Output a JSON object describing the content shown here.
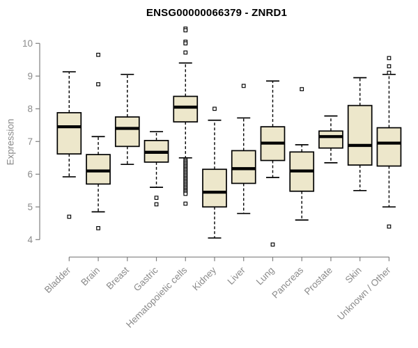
{
  "chart_data": {
    "type": "boxplot",
    "title": "ENSG00000066379 - ZNRD1",
    "ylabel": "Expression",
    "xlabel": "",
    "ylim": [
      3.8,
      10.6
    ],
    "yticks": [
      4,
      5,
      6,
      7,
      8,
      9,
      10
    ],
    "grid": false,
    "legend": "none",
    "categories": [
      "Bladder",
      "Brain",
      "Breast",
      "Gastric",
      "Hematopoietic cells",
      "Kidney",
      "Liver",
      "Lung",
      "Pancreas",
      "Prostate",
      "Skin",
      "Unknown / Other"
    ],
    "boxes": [
      {
        "label": "Bladder",
        "whisker_low": 5.92,
        "q1": 6.62,
        "median": 7.45,
        "q3": 7.88,
        "whisker_high": 9.13,
        "outliers": [
          4.7
        ]
      },
      {
        "label": "Brain",
        "whisker_low": 4.85,
        "q1": 5.7,
        "median": 6.1,
        "q3": 6.6,
        "whisker_high": 7.15,
        "outliers": [
          9.65,
          8.75,
          4.35
        ]
      },
      {
        "label": "Breast",
        "whisker_low": 6.3,
        "q1": 6.85,
        "median": 7.4,
        "q3": 7.75,
        "whisker_high": 9.05,
        "outliers": []
      },
      {
        "label": "Gastric",
        "whisker_low": 5.6,
        "q1": 6.37,
        "median": 6.67,
        "q3": 7.03,
        "whisker_high": 7.3,
        "outliers": [
          5.28,
          5.08
        ]
      },
      {
        "label": "Hematopoietic cells",
        "whisker_low": 6.5,
        "q1": 7.6,
        "median": 8.05,
        "q3": 8.38,
        "whisker_high": 9.4,
        "outliers": [
          10.45,
          10.4,
          10.05,
          10.0,
          9.72,
          6.44,
          6.4,
          6.36,
          6.32,
          6.28,
          6.24,
          6.2,
          6.16,
          6.12,
          6.08,
          6.04,
          6.0,
          5.96,
          5.92,
          5.88,
          5.84,
          5.8,
          5.76,
          5.72,
          5.68,
          5.64,
          5.6,
          5.56,
          5.52,
          5.48,
          5.44,
          5.4,
          5.1
        ]
      },
      {
        "label": "Kidney",
        "whisker_low": 4.05,
        "q1": 5.0,
        "median": 5.45,
        "q3": 6.15,
        "whisker_high": 7.65,
        "outliers": [
          8.0
        ]
      },
      {
        "label": "Liver",
        "whisker_low": 4.8,
        "q1": 5.72,
        "median": 6.17,
        "q3": 6.72,
        "whisker_high": 7.72,
        "outliers": [
          8.7
        ]
      },
      {
        "label": "Lung",
        "whisker_low": 5.9,
        "q1": 6.42,
        "median": 6.95,
        "q3": 7.45,
        "whisker_high": 8.85,
        "outliers": [
          3.85
        ]
      },
      {
        "label": "Pancreas",
        "whisker_low": 4.6,
        "q1": 5.48,
        "median": 6.1,
        "q3": 6.68,
        "whisker_high": 6.9,
        "outliers": [
          8.6
        ]
      },
      {
        "label": "Prostate",
        "whisker_low": 6.35,
        "q1": 6.8,
        "median": 7.15,
        "q3": 7.32,
        "whisker_high": 7.78,
        "outliers": []
      },
      {
        "label": "Skin",
        "whisker_low": 5.5,
        "q1": 6.28,
        "median": 6.88,
        "q3": 8.1,
        "whisker_high": 8.95,
        "outliers": []
      },
      {
        "label": "Unknown / Other",
        "whisker_low": 5.0,
        "q1": 6.25,
        "median": 6.95,
        "q3": 7.42,
        "whisker_high": 9.05,
        "outliers": [
          9.55,
          9.3,
          9.1,
          4.4
        ]
      }
    ]
  },
  "style": {
    "box_fill": "#EDE7CB",
    "box_stroke": "#000000",
    "median_color": "#000000",
    "whisker_color": "#000000",
    "outlier_stroke": "#000000",
    "outlier_fill": "#ffffff",
    "axis_color": "#7f7f7f",
    "label_color": "#8a8a8a",
    "title_color": "#000000",
    "background": "#ffffff"
  }
}
